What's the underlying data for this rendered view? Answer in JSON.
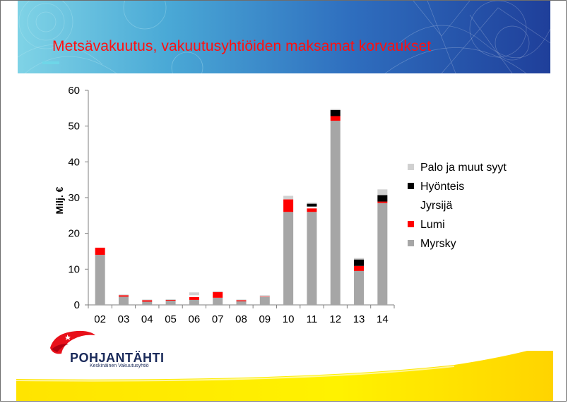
{
  "slide": {
    "title": "Metsävakuutus, vakuutusyhtiöiden maksamat korvaukset",
    "logo_name": "POHJANTÄHTI",
    "logo_subtitle": "Keskinäinen Vakuutusyhtiö"
  },
  "colors": {
    "title": "#ff1010",
    "header_blue": "#2f6fbf",
    "footer_yellow": "#ffe800"
  },
  "chart_data": {
    "type": "bar",
    "stacked": true,
    "ylabel": "Milj. €",
    "ylim": [
      0,
      60
    ],
    "yticks": [
      "0",
      "10",
      "20",
      "30",
      "40",
      "50",
      "60"
    ],
    "categories": [
      "02",
      "03",
      "04",
      "05",
      "06",
      "07",
      "08",
      "09",
      "10",
      "11",
      "12",
      "13",
      "14"
    ],
    "legend_position": "right",
    "series": [
      {
        "name": "Myrsky",
        "color": "#a6a6a6",
        "values": [
          14,
          2.3,
          0.9,
          1.2,
          1.4,
          2,
          1,
          2.2,
          26,
          26,
          51.5,
          9.5,
          28.5
        ]
      },
      {
        "name": "Lumi",
        "color": "#ff0000",
        "values": [
          2,
          0.4,
          0.4,
          0.2,
          0.8,
          1.6,
          0.3,
          0.1,
          3.5,
          1,
          1.3,
          1.4,
          0.4
        ]
      },
      {
        "name": "Jyrsijä",
        "color": "#ffffff",
        "values": [
          0,
          0,
          0,
          0,
          0.5,
          0,
          0,
          0,
          0,
          0.5,
          0,
          0,
          0
        ]
      },
      {
        "name": "Hyönteis",
        "color": "#000000",
        "values": [
          0,
          0,
          0,
          0,
          0,
          0,
          0,
          0,
          0,
          0.8,
          1.7,
          1.8,
          1.8
        ]
      },
      {
        "name": "Palo ja muut syyt",
        "color": "#d0d0d0",
        "values": [
          0,
          0.2,
          0.2,
          0.2,
          0.8,
          0.2,
          0.2,
          0.4,
          1,
          0.3,
          0.3,
          0.4,
          1.6
        ]
      }
    ]
  }
}
